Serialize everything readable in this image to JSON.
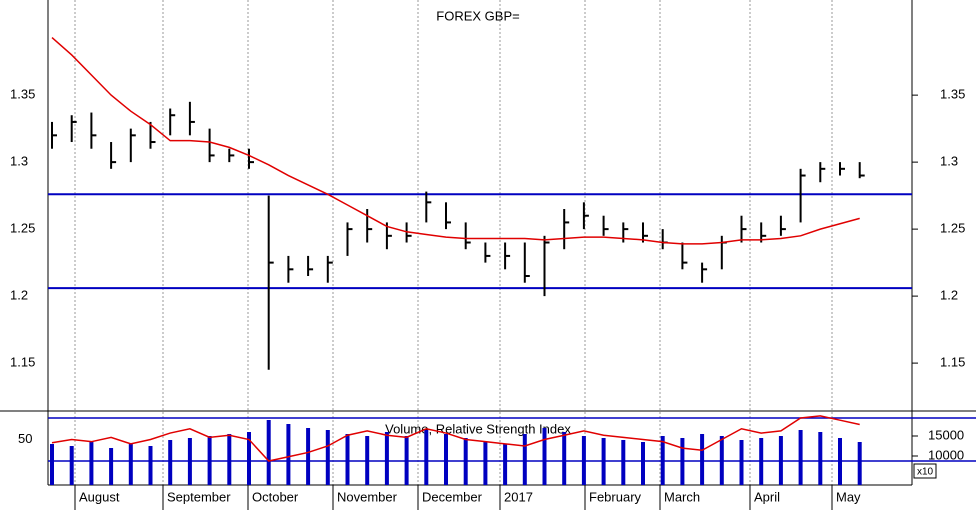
{
  "chart_data": [
    {
      "type": "ohlc",
      "title": "FOREX GBP=",
      "color": "#000000",
      "high": [
        1.33,
        1.335,
        1.337,
        1.315,
        1.325,
        1.33,
        1.34,
        1.345,
        1.325,
        1.31,
        1.31,
        1.275,
        1.23,
        1.23,
        1.23,
        1.255,
        1.265,
        1.255,
        1.255,
        1.278,
        1.27,
        1.255,
        1.24,
        1.24,
        1.24,
        1.245,
        1.265,
        1.27,
        1.26,
        1.255,
        1.255,
        1.25,
        1.24,
        1.225,
        1.245,
        1.26,
        1.255,
        1.26,
        1.295,
        1.3,
        1.3,
        1.3
      ],
      "low": [
        1.31,
        1.315,
        1.31,
        1.295,
        1.3,
        1.31,
        1.32,
        1.32,
        1.3,
        1.3,
        1.295,
        1.145,
        1.21,
        1.215,
        1.21,
        1.23,
        1.24,
        1.235,
        1.24,
        1.255,
        1.25,
        1.235,
        1.225,
        1.22,
        1.21,
        1.2,
        1.235,
        1.25,
        1.245,
        1.24,
        1.24,
        1.235,
        1.22,
        1.21,
        1.22,
        1.24,
        1.24,
        1.245,
        1.255,
        1.285,
        1.29,
        1.288
      ],
      "close": [
        1.32,
        1.33,
        1.32,
        1.3,
        1.32,
        1.315,
        1.335,
        1.33,
        1.305,
        1.305,
        1.3,
        1.225,
        1.22,
        1.22,
        1.225,
        1.25,
        1.25,
        1.245,
        1.245,
        1.27,
        1.255,
        1.24,
        1.23,
        1.23,
        1.215,
        1.24,
        1.255,
        1.26,
        1.25,
        1.25,
        1.245,
        1.24,
        1.225,
        1.22,
        1.24,
        1.25,
        1.245,
        1.25,
        1.29,
        1.295,
        1.295,
        1.29
      ],
      "ma": {
        "color": "#e00000",
        "values": [
          1.393,
          1.38,
          1.365,
          1.35,
          1.338,
          1.328,
          1.316,
          1.316,
          1.315,
          1.311,
          1.305,
          1.298,
          1.29,
          1.283,
          1.276,
          1.268,
          1.26,
          1.252,
          1.248,
          1.246,
          1.244,
          1.243,
          1.243,
          1.243,
          1.243,
          1.242,
          1.243,
          1.244,
          1.244,
          1.243,
          1.242,
          1.24,
          1.239,
          1.239,
          1.24,
          1.242,
          1.242,
          1.243,
          1.245,
          1.25,
          1.254,
          1.258
        ]
      },
      "hlines": {
        "color": "#0000c0",
        "values": [
          1.276,
          1.206
        ]
      },
      "ylim": [
        1.115,
        1.421
      ],
      "yticks": [
        1.15,
        1.2,
        1.25,
        1.3,
        1.35
      ]
    },
    {
      "type": "indicator",
      "title": "Volume, Relative Strength Index",
      "months": [
        "August",
        "September",
        "October",
        "November",
        "December",
        "2017",
        "February",
        "March",
        "April",
        "May"
      ],
      "rsi": {
        "color": "#e00000",
        "values": [
          47,
          50,
          48,
          52,
          46,
          50,
          56,
          60,
          52,
          54,
          50,
          30,
          34,
          38,
          44,
          54,
          58,
          54,
          52,
          60,
          56,
          50,
          48,
          46,
          44,
          50,
          54,
          58,
          54,
          52,
          50,
          48,
          42,
          40,
          50,
          60,
          56,
          58,
          70,
          72,
          68,
          64
        ],
        "ylim": [
          7.7,
          75.6
        ],
        "yticks": [
          50
        ],
        "hlines": [
          30,
          70
        ]
      },
      "volume": {
        "color": "#0000c0",
        "values": [
          13000,
          12500,
          13500,
          12000,
          13000,
          12500,
          14000,
          14500,
          15000,
          15500,
          16000,
          19000,
          18000,
          17000,
          16500,
          15500,
          15000,
          16000,
          15000,
          16500,
          15500,
          14500,
          13500,
          13000,
          15500,
          17000,
          16000,
          15000,
          14500,
          14000,
          13500,
          15000,
          14500,
          15500,
          15000,
          14000,
          14500,
          15000,
          16500,
          16000,
          14500,
          13500
        ],
        "y2lim": [
          2750,
          21000
        ],
        "y2ticks": [
          15000,
          10000
        ],
        "unit": "x10"
      }
    }
  ]
}
